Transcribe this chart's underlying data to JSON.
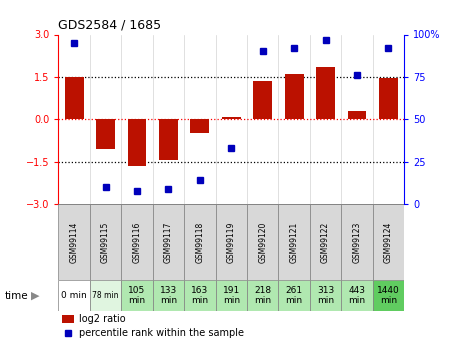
{
  "title": "GDS2584 / 1685",
  "samples": [
    "GSM99114",
    "GSM99115",
    "GSM99116",
    "GSM99117",
    "GSM99118",
    "GSM99119",
    "GSM99120",
    "GSM99121",
    "GSM99122",
    "GSM99123",
    "GSM99124"
  ],
  "log2_ratio": [
    1.5,
    -1.05,
    -1.65,
    -1.45,
    -0.5,
    0.07,
    1.35,
    1.6,
    1.85,
    0.28,
    1.45
  ],
  "percentile_rank": [
    95,
    10,
    8,
    9,
    14,
    33,
    90,
    92,
    97,
    76,
    92
  ],
  "time_labels_line1": [
    "0 min",
    "78 min",
    "105",
    "133",
    "163",
    "191",
    "218",
    "261",
    "313",
    "443",
    "1440"
  ],
  "time_labels_line2": [
    "",
    "",
    "min",
    "min",
    "min",
    "min",
    "min",
    "min",
    "min",
    "min",
    "min"
  ],
  "time_colors": [
    "#ffffff",
    "#e0f5e0",
    "#b0e8b0",
    "#b0e8b0",
    "#b0e8b0",
    "#b0e8b0",
    "#b0e8b0",
    "#b0e8b0",
    "#b0e8b0",
    "#b0e8b0",
    "#60cc60"
  ],
  "bar_color": "#bb1100",
  "dot_color": "#0000bb",
  "ylim_left": [
    -3,
    3
  ],
  "ylim_right": [
    0,
    100
  ],
  "yticks_left": [
    -3,
    -1.5,
    0,
    1.5,
    3
  ],
  "yticks_right": [
    0,
    25,
    50,
    75,
    100
  ],
  "sample_cell_color": "#d8d8d8",
  "legend_log2_color": "#bb1100",
  "legend_pct_color": "#0000bb"
}
